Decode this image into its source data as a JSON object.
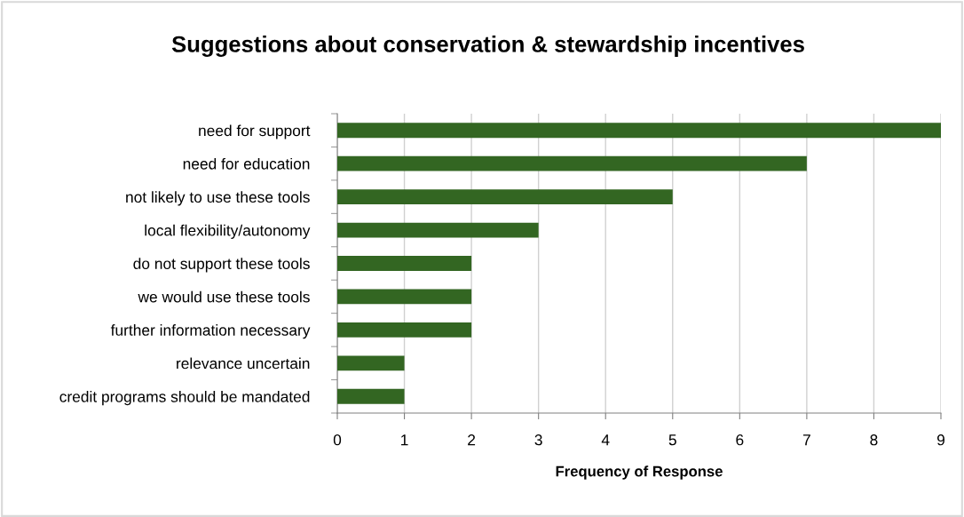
{
  "chart_data": {
    "type": "bar",
    "orientation": "horizontal",
    "title": "Suggestions about conservation & stewardship incentives",
    "xlabel": "Frequency of Response",
    "categories": [
      "need for support",
      "need for education",
      "not likely to use these tools",
      "local flexibility/autonomy",
      "do not support these tools",
      "we would use these tools",
      "further information necessary",
      "relevance uncertain",
      "credit programs should be mandated"
    ],
    "values": [
      9,
      7,
      5,
      3,
      2,
      2,
      2,
      1,
      1
    ],
    "color": "#336622",
    "xlim": [
      0,
      9
    ],
    "xticks": [
      0,
      1,
      2,
      3,
      4,
      5,
      6,
      7,
      8,
      9
    ],
    "grid": "x",
    "legend": false
  }
}
